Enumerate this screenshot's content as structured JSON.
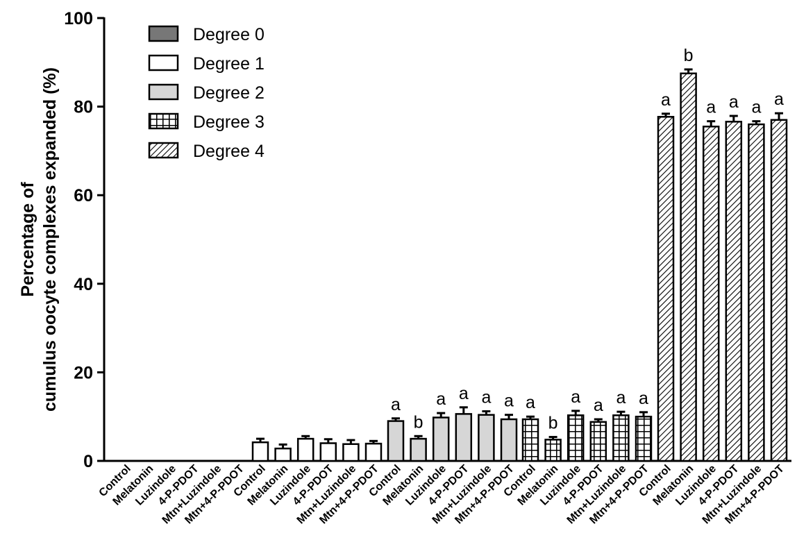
{
  "chart_data": {
    "type": "bar",
    "ylabel_lines": [
      "Percentage of",
      "cumulus oocyte complexes expanded (%)"
    ],
    "ylim": [
      0,
      100
    ],
    "yticks": [
      0,
      20,
      40,
      60,
      80,
      100
    ],
    "legend_placement": "top-left",
    "categories": [
      "Control",
      "Melatonin",
      "Luzindole",
      "4-P-PDOT",
      "Mtn+Luzindole",
      "Mtn+4-P-PDOT"
    ],
    "series": [
      {
        "name": "Degree 0",
        "pattern": "solid-dark",
        "fill": "#777777",
        "values": [
          0,
          0,
          0,
          0,
          0,
          0
        ],
        "errors": [
          0,
          0,
          0,
          0,
          0,
          0
        ],
        "labels": [
          "",
          "",
          "",
          "",
          "",
          ""
        ]
      },
      {
        "name": "Degree 1",
        "pattern": "white",
        "fill": "#ffffff",
        "values": [
          4.2,
          2.8,
          5.0,
          4.0,
          3.8,
          3.9
        ],
        "errors": [
          0.8,
          0.9,
          0.6,
          0.9,
          0.9,
          0.6
        ],
        "labels": [
          "",
          "",
          "",
          "",
          "",
          ""
        ]
      },
      {
        "name": "Degree 2",
        "pattern": "light-gray",
        "fill": "#d6d6d6",
        "values": [
          9.0,
          5.0,
          9.8,
          10.6,
          10.4,
          9.4
        ],
        "errors": [
          0.6,
          0.6,
          1.0,
          1.5,
          0.8,
          1.0
        ],
        "labels": [
          "a",
          "b",
          "a",
          "a",
          "a",
          "a"
        ]
      },
      {
        "name": "Degree 3",
        "pattern": "grid",
        "fill": "#ffffff",
        "values": [
          9.4,
          4.8,
          10.3,
          8.8,
          10.3,
          10.0
        ],
        "errors": [
          0.6,
          0.6,
          1.0,
          0.6,
          0.8,
          1.0
        ],
        "labels": [
          "a",
          "b",
          "a",
          "a",
          "a",
          "a"
        ]
      },
      {
        "name": "Degree 4",
        "pattern": "hatch",
        "fill": "#ffffff",
        "values": [
          77.7,
          87.5,
          75.5,
          76.6,
          76.0,
          77.0
        ],
        "errors": [
          0.7,
          0.9,
          1.2,
          1.3,
          0.7,
          1.5
        ],
        "labels": [
          "a",
          "b",
          "a",
          "a",
          "a",
          "a"
        ]
      }
    ]
  }
}
